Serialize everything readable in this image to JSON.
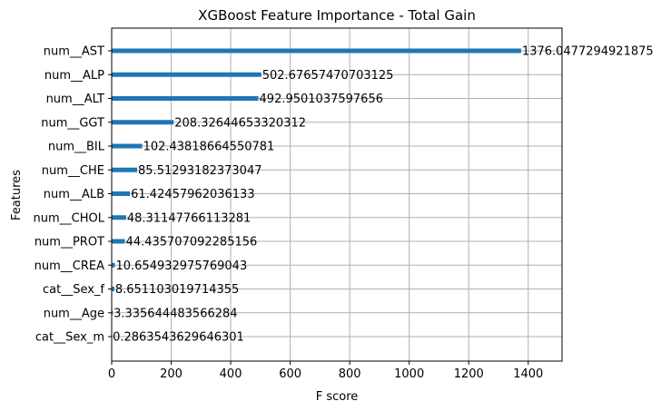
{
  "chart_data": {
    "type": "bar",
    "orientation": "horizontal",
    "title": "XGBoost Feature Importance - Total Gain",
    "xlabel": "F score",
    "ylabel": "Features",
    "xlim": [
      0,
      1513.6
    ],
    "xticks": [
      0,
      200,
      400,
      600,
      800,
      1000,
      1200,
      1400
    ],
    "grid": true,
    "bar_color": "#1f77b4",
    "categories": [
      "num__AST",
      "num__ALP",
      "num__ALT",
      "num__GGT",
      "num__BIL",
      "num__CHE",
      "num__ALB",
      "num__CHOL",
      "num__PROT",
      "num__CREA",
      "cat__Sex_f",
      "num__Age",
      "cat__Sex_m"
    ],
    "values": [
      1376.0477294921875,
      502.67657470703125,
      492.9501037597656,
      208.32644653320312,
      102.43818664550781,
      85.51293182373047,
      61.42457962036133,
      48.31147766113281,
      44.435707092285156,
      10.654932975769043,
      8.651103019714355,
      3.335644483566284,
      0.2863543629646301
    ],
    "value_labels": [
      "1376.0477294921875",
      "502.67657470703125",
      "492.9501037597656",
      "208.32644653320312",
      "102.43818664550781",
      "85.51293182373047",
      "61.42457962036133",
      "48.31147766113281",
      "44.435707092285156",
      "10.654932975769043",
      "8.651103019714355",
      "3.335644483566284",
      "0.2863543629646301"
    ]
  }
}
